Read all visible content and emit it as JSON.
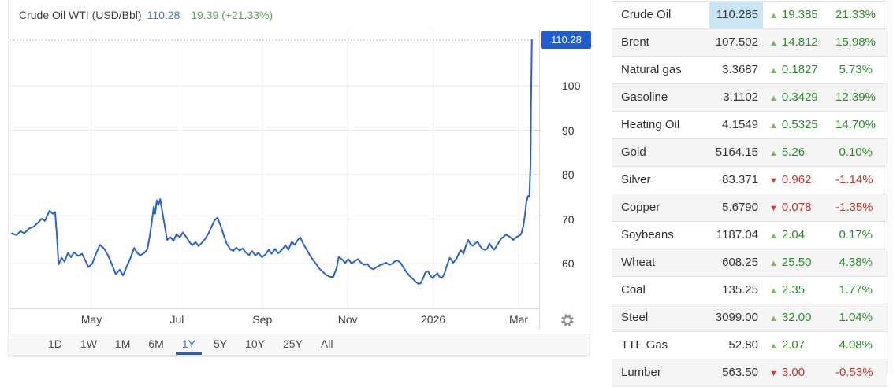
{
  "header": {
    "title": "Crude Oil WTI (USD/Bbl)",
    "price": "110.28",
    "change": "19.39 (+21.33%)"
  },
  "chart_data": {
    "type": "line",
    "title": "Crude Oil WTI (USD/Bbl)",
    "xlabel": "",
    "ylabel": "USD/Bbl",
    "legend": "none",
    "grid": true,
    "last_price": 110.28,
    "change": 19.39,
    "change_pct": "+21.33%",
    "current_price_label": "110.28",
    "period_selected": "1Y",
    "x_unit": "months since Apr 2025",
    "x_ticks": [
      {
        "label": "May",
        "m": 1
      },
      {
        "label": "Jul",
        "m": 3
      },
      {
        "label": "Sep",
        "m": 5
      },
      {
        "label": "Nov",
        "m": 7
      },
      {
        "label": "2026",
        "m": 9
      },
      {
        "label": "Mar",
        "m": 11
      }
    ],
    "y_ticks": [
      60,
      70,
      80,
      90,
      100
    ],
    "ylim": [
      50,
      113
    ],
    "points": [
      [
        -0.86,
        66.8
      ],
      [
        -0.75,
        66.4
      ],
      [
        -0.66,
        67.3
      ],
      [
        -0.57,
        66.8
      ],
      [
        -0.46,
        67.9
      ],
      [
        -0.35,
        68.3
      ],
      [
        -0.25,
        69.2
      ],
      [
        -0.16,
        70.1
      ],
      [
        -0.09,
        69.6
      ],
      [
        0.02,
        71.9
      ],
      [
        0.1,
        71.2
      ],
      [
        0.15,
        71.6
      ],
      [
        0.19,
        66.5
      ],
      [
        0.23,
        59.8
      ],
      [
        0.3,
        61.3
      ],
      [
        0.37,
        60.4
      ],
      [
        0.45,
        62.4
      ],
      [
        0.52,
        61.4
      ],
      [
        0.59,
        62.5
      ],
      [
        0.69,
        61.7
      ],
      [
        0.78,
        62.2
      ],
      [
        0.85,
        60.8
      ],
      [
        0.93,
        59.2
      ],
      [
        1.02,
        60.0
      ],
      [
        1.11,
        62.3
      ],
      [
        1.2,
        64.2
      ],
      [
        1.3,
        63.3
      ],
      [
        1.39,
        61.8
      ],
      [
        1.48,
        59.8
      ],
      [
        1.57,
        57.6
      ],
      [
        1.66,
        58.6
      ],
      [
        1.74,
        57.3
      ],
      [
        1.83,
        59.4
      ],
      [
        1.92,
        61.4
      ],
      [
        2.0,
        63.5
      ],
      [
        2.07,
        62.4
      ],
      [
        2.14,
        61.8
      ],
      [
        2.24,
        62.4
      ],
      [
        2.31,
        63.2
      ],
      [
        2.37,
        66.5
      ],
      [
        2.42,
        70.0
      ],
      [
        2.46,
        72.8
      ],
      [
        2.49,
        71.2
      ],
      [
        2.53,
        74.2
      ],
      [
        2.57,
        73.2
      ],
      [
        2.61,
        74.5
      ],
      [
        2.66,
        71.5
      ],
      [
        2.72,
        68.3
      ],
      [
        2.77,
        65.3
      ],
      [
        2.85,
        65.9
      ],
      [
        2.92,
        65.1
      ],
      [
        2.99,
        66.6
      ],
      [
        3.07,
        65.9
      ],
      [
        3.14,
        67.0
      ],
      [
        3.21,
        66.1
      ],
      [
        3.29,
        64.9
      ],
      [
        3.36,
        64.1
      ],
      [
        3.44,
        64.8
      ],
      [
        3.51,
        63.9
      ],
      [
        3.58,
        64.6
      ],
      [
        3.66,
        65.5
      ],
      [
        3.73,
        66.6
      ],
      [
        3.8,
        68.0
      ],
      [
        3.88,
        69.7
      ],
      [
        3.95,
        70.3
      ],
      [
        4.03,
        68.4
      ],
      [
        4.1,
        66.3
      ],
      [
        4.17,
        64.4
      ],
      [
        4.25,
        63.2
      ],
      [
        4.32,
        62.8
      ],
      [
        4.39,
        63.6
      ],
      [
        4.47,
        62.9
      ],
      [
        4.54,
        63.4
      ],
      [
        4.62,
        62.4
      ],
      [
        4.69,
        61.9
      ],
      [
        4.76,
        62.8
      ],
      [
        4.84,
        61.8
      ],
      [
        4.91,
        62.4
      ],
      [
        4.99,
        61.4
      ],
      [
        5.08,
        62.1
      ],
      [
        5.15,
        63.1
      ],
      [
        5.22,
        62.2
      ],
      [
        5.3,
        63.3
      ],
      [
        5.37,
        62.3
      ],
      [
        5.46,
        63.1
      ],
      [
        5.54,
        64.1
      ],
      [
        5.61,
        63.1
      ],
      [
        5.69,
        64.9
      ],
      [
        5.76,
        64.2
      ],
      [
        5.83,
        65.3
      ],
      [
        5.89,
        65.9
      ],
      [
        5.96,
        64.4
      ],
      [
        6.04,
        63.1
      ],
      [
        6.11,
        61.9
      ],
      [
        6.18,
        60.9
      ],
      [
        6.26,
        59.9
      ],
      [
        6.33,
        58.9
      ],
      [
        6.41,
        58.2
      ],
      [
        6.5,
        57.4
      ],
      [
        6.59,
        57.0
      ],
      [
        6.66,
        57.0
      ],
      [
        6.74,
        59.0
      ],
      [
        6.79,
        61.5
      ],
      [
        6.87,
        60.9
      ],
      [
        6.94,
        60.1
      ],
      [
        7.01,
        61.0
      ],
      [
        7.09,
        60.0
      ],
      [
        7.16,
        60.5
      ],
      [
        7.24,
        61.0
      ],
      [
        7.31,
        60.2
      ],
      [
        7.38,
        59.7
      ],
      [
        7.46,
        59.9
      ],
      [
        7.53,
        59.0
      ],
      [
        7.6,
        58.7
      ],
      [
        7.68,
        59.2
      ],
      [
        7.75,
        59.6
      ],
      [
        7.83,
        59.9
      ],
      [
        7.9,
        60.2
      ],
      [
        7.97,
        59.7
      ],
      [
        8.05,
        60.0
      ],
      [
        8.1,
        60.5
      ],
      [
        8.16,
        60.7
      ],
      [
        8.23,
        60.2
      ],
      [
        8.31,
        59.0
      ],
      [
        8.38,
        58.0
      ],
      [
        8.45,
        57.2
      ],
      [
        8.53,
        56.5
      ],
      [
        8.6,
        55.8
      ],
      [
        8.66,
        55.4
      ],
      [
        8.71,
        55.6
      ],
      [
        8.77,
        56.8
      ],
      [
        8.82,
        58.0
      ],
      [
        8.88,
        58.3
      ],
      [
        8.93,
        57.3
      ],
      [
        8.99,
        56.7
      ],
      [
        9.04,
        57.3
      ],
      [
        9.1,
        57.8
      ],
      [
        9.15,
        57.0
      ],
      [
        9.21,
        56.8
      ],
      [
        9.27,
        57.9
      ],
      [
        9.32,
        59.5
      ],
      [
        9.39,
        61.3
      ],
      [
        9.47,
        60.2
      ],
      [
        9.54,
        61.0
      ],
      [
        9.6,
        62.2
      ],
      [
        9.65,
        63.0
      ],
      [
        9.71,
        62.2
      ],
      [
        9.76,
        63.8
      ],
      [
        9.82,
        65.3
      ],
      [
        9.87,
        64.4
      ],
      [
        9.93,
        64.0
      ],
      [
        9.99,
        64.6
      ],
      [
        10.04,
        64.9
      ],
      [
        10.1,
        63.9
      ],
      [
        10.15,
        63.3
      ],
      [
        10.21,
        63.1
      ],
      [
        10.26,
        63.3
      ],
      [
        10.32,
        64.5
      ],
      [
        10.37,
        63.7
      ],
      [
        10.43,
        63.1
      ],
      [
        10.48,
        63.9
      ],
      [
        10.54,
        64.8
      ],
      [
        10.59,
        65.6
      ],
      [
        10.65,
        66.0
      ],
      [
        10.7,
        66.5
      ],
      [
        10.76,
        66.2
      ],
      [
        10.81,
        65.9
      ],
      [
        10.87,
        65.3
      ],
      [
        10.93,
        65.8
      ],
      [
        10.98,
        66.1
      ],
      [
        11.04,
        66.4
      ],
      [
        11.07,
        67.0
      ],
      [
        11.11,
        68.5
      ],
      [
        11.15,
        71.0
      ],
      [
        11.18,
        73.8
      ],
      [
        11.22,
        75.2
      ],
      [
        11.25,
        75.0
      ],
      [
        11.28,
        83.0
      ],
      [
        11.29,
        96.0
      ],
      [
        11.31,
        110.28
      ]
    ]
  },
  "range_selector": {
    "options": [
      "1D",
      "1W",
      "1M",
      "6M",
      "1Y",
      "5Y",
      "10Y",
      "25Y",
      "All"
    ],
    "selected": "1Y"
  },
  "table": {
    "rows": [
      {
        "name": "Crude Oil",
        "price": "110.285",
        "change": "19.385",
        "pct": "21.33%",
        "dir": "up",
        "highlight": true
      },
      {
        "name": "Brent",
        "price": "107.502",
        "change": "14.812",
        "pct": "15.98%",
        "dir": "up"
      },
      {
        "name": "Natural gas",
        "price": "3.3687",
        "change": "0.1827",
        "pct": "5.73%",
        "dir": "up"
      },
      {
        "name": "Gasoline",
        "price": "3.1102",
        "change": "0.3429",
        "pct": "12.39%",
        "dir": "up"
      },
      {
        "name": "Heating Oil",
        "price": "4.1549",
        "change": "0.5325",
        "pct": "14.70%",
        "dir": "up"
      },
      {
        "name": "Gold",
        "price": "5164.15",
        "change": "5.26",
        "pct": "0.10%",
        "dir": "up"
      },
      {
        "name": "Silver",
        "price": "83.371",
        "change": "0.962",
        "pct": "-1.14%",
        "dir": "down"
      },
      {
        "name": "Copper",
        "price": "5.6790",
        "change": "0.078",
        "pct": "-1.35%",
        "dir": "down"
      },
      {
        "name": "Soybeans",
        "price": "1187.04",
        "change": "2.04",
        "pct": "0.17%",
        "dir": "up"
      },
      {
        "name": "Wheat",
        "price": "608.25",
        "change": "25.50",
        "pct": "4.38%",
        "dir": "up"
      },
      {
        "name": "Coal",
        "price": "135.25",
        "change": "2.35",
        "pct": "1.77%",
        "dir": "up"
      },
      {
        "name": "Steel",
        "price": "3099.00",
        "change": "32.00",
        "pct": "1.04%",
        "dir": "up"
      },
      {
        "name": "TTF Gas",
        "price": "52.80",
        "change": "2.07",
        "pct": "4.08%",
        "dir": "up"
      },
      {
        "name": "Lumber",
        "price": "563.50",
        "change": "3.00",
        "pct": "-0.53%",
        "dir": "down"
      }
    ],
    "up_symbol": "▲",
    "down_symbol": "▼"
  },
  "colors": {
    "line": "#2a63cc",
    "badge_bg": "#1e5ed2",
    "grid": "#ececec",
    "dotted_price_line": "#a7b6cd",
    "up_green_text": "#2f8a2e",
    "down_red_text": "#c0392b",
    "up_triangle": "#76ba57",
    "down_triangle": "#d23b2f",
    "highlight_cell": "#c9e5f6",
    "selected_range": "#4176bd"
  }
}
